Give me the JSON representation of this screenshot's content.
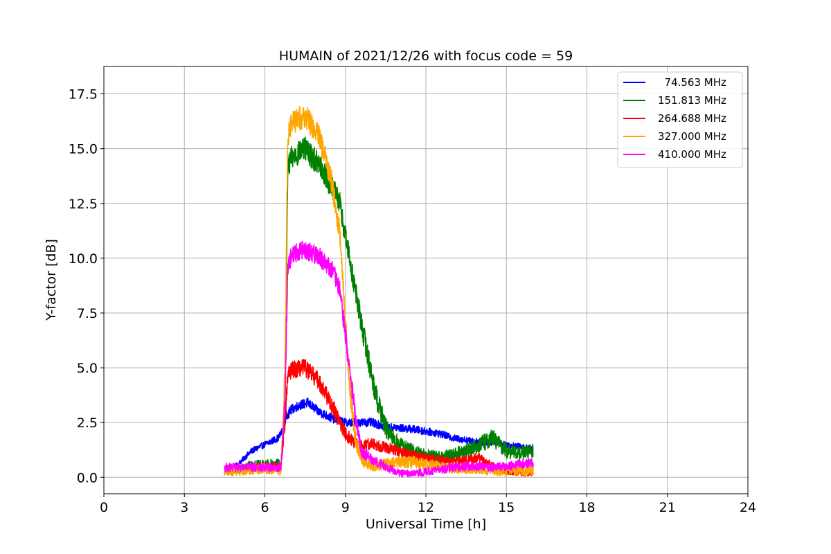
{
  "chart_data": {
    "type": "line",
    "title": "HUMAIN of 2021/12/26 with focus code = 59",
    "xlabel": "Universal Time [h]",
    "ylabel": "Y-factor [dB]",
    "xlim": [
      0,
      24
    ],
    "ylim": [
      -0.75,
      18.75
    ],
    "xticks": [
      0,
      3,
      6,
      9,
      12,
      15,
      18,
      21,
      24
    ],
    "xtick_labels": [
      "0",
      "3",
      "6",
      "9",
      "12",
      "15",
      "18",
      "21",
      "24"
    ],
    "yticks": [
      0,
      2.5,
      5,
      7.5,
      10,
      12.5,
      15,
      17.5
    ],
    "ytick_labels": [
      "0.0",
      "2.5",
      "5.0",
      "7.5",
      "10.0",
      "12.5",
      "15.0",
      "17.5"
    ],
    "grid": true,
    "legend_position": "top-right",
    "series": [
      {
        "name": "  74.563 MHz",
        "color": "#0000ff",
        "points": [
          [
            4.5,
            0.2
          ],
          [
            5.0,
            0.6
          ],
          [
            5.5,
            1.2
          ],
          [
            6.0,
            1.5
          ],
          [
            6.5,
            1.8
          ],
          [
            6.7,
            2.2
          ],
          [
            6.8,
            2.8
          ],
          [
            7.0,
            3.1
          ],
          [
            7.3,
            3.3
          ],
          [
            7.6,
            3.4
          ],
          [
            8.0,
            3.0
          ],
          [
            8.5,
            2.7
          ],
          [
            9.0,
            2.5
          ],
          [
            9.5,
            2.5
          ],
          [
            10.0,
            2.5
          ],
          [
            10.5,
            2.3
          ],
          [
            11.0,
            2.25
          ],
          [
            11.5,
            2.2
          ],
          [
            12.0,
            2.1
          ],
          [
            12.5,
            2.0
          ],
          [
            13.0,
            1.8
          ],
          [
            13.5,
            1.7
          ],
          [
            14.0,
            1.6
          ],
          [
            14.5,
            1.6
          ],
          [
            15.0,
            1.5
          ],
          [
            15.5,
            1.4
          ],
          [
            16.0,
            1.3
          ]
        ],
        "noise": 0.22
      },
      {
        "name": "151.813 MHz",
        "color": "#008000",
        "points": [
          [
            4.5,
            0.3
          ],
          [
            5.0,
            0.4
          ],
          [
            5.5,
            0.5
          ],
          [
            6.0,
            0.55
          ],
          [
            6.6,
            0.6
          ],
          [
            6.75,
            3.0
          ],
          [
            6.85,
            14.0
          ],
          [
            7.0,
            14.6
          ],
          [
            7.5,
            15.0
          ],
          [
            8.0,
            14.3
          ],
          [
            8.5,
            13.2
          ],
          [
            8.8,
            12.5
          ],
          [
            9.0,
            11.0
          ],
          [
            9.3,
            9.0
          ],
          [
            9.6,
            7.0
          ],
          [
            10.0,
            4.5
          ],
          [
            10.3,
            3.0
          ],
          [
            10.6,
            2.0
          ],
          [
            11.0,
            1.5
          ],
          [
            11.5,
            1.2
          ],
          [
            12.0,
            1.0
          ],
          [
            12.5,
            0.9
          ],
          [
            13.0,
            1.0
          ],
          [
            13.5,
            1.2
          ],
          [
            14.0,
            1.5
          ],
          [
            14.5,
            1.8
          ],
          [
            15.0,
            1.2
          ],
          [
            15.5,
            1.1
          ],
          [
            16.0,
            1.2
          ]
        ],
        "noise": 0.55
      },
      {
        "name": "264.688 MHz",
        "color": "#ff0000",
        "points": [
          [
            4.5,
            0.4
          ],
          [
            5.0,
            0.4
          ],
          [
            5.5,
            0.45
          ],
          [
            6.0,
            0.5
          ],
          [
            6.6,
            0.5
          ],
          [
            6.75,
            2.5
          ],
          [
            6.85,
            4.6
          ],
          [
            7.0,
            4.9
          ],
          [
            7.5,
            5.0
          ],
          [
            8.0,
            4.4
          ],
          [
            8.5,
            3.3
          ],
          [
            8.8,
            2.5
          ],
          [
            9.0,
            2.0
          ],
          [
            9.3,
            1.6
          ],
          [
            9.6,
            1.4
          ],
          [
            10.0,
            1.55
          ],
          [
            10.5,
            1.35
          ],
          [
            11.0,
            1.2
          ],
          [
            11.5,
            1.0
          ],
          [
            12.0,
            0.9
          ],
          [
            12.5,
            0.8
          ],
          [
            13.0,
            0.7
          ],
          [
            13.5,
            0.8
          ],
          [
            14.0,
            0.9
          ],
          [
            14.5,
            0.5
          ],
          [
            15.0,
            0.3
          ],
          [
            15.5,
            0.2
          ],
          [
            16.0,
            0.2
          ]
        ],
        "noise": 0.4
      },
      {
        "name": "327.000 MHz",
        "color": "#ffa500",
        "points": [
          [
            4.5,
            0.3
          ],
          [
            5.0,
            0.3
          ],
          [
            5.5,
            0.35
          ],
          [
            6.0,
            0.4
          ],
          [
            6.6,
            0.3
          ],
          [
            6.75,
            5.0
          ],
          [
            6.85,
            15.5
          ],
          [
            7.0,
            16.2
          ],
          [
            7.5,
            16.5
          ],
          [
            8.0,
            15.6
          ],
          [
            8.5,
            13.5
          ],
          [
            8.8,
            11.0
          ],
          [
            9.0,
            7.0
          ],
          [
            9.2,
            3.5
          ],
          [
            9.4,
            1.5
          ],
          [
            9.7,
            0.7
          ],
          [
            10.0,
            0.5
          ],
          [
            10.5,
            0.6
          ],
          [
            11.0,
            0.7
          ],
          [
            11.5,
            0.7
          ],
          [
            12.0,
            0.6
          ],
          [
            12.5,
            0.5
          ],
          [
            13.0,
            0.4
          ],
          [
            13.5,
            0.4
          ],
          [
            14.0,
            0.4
          ],
          [
            14.5,
            0.3
          ],
          [
            15.0,
            0.3
          ],
          [
            15.5,
            0.3
          ],
          [
            16.0,
            0.3
          ]
        ],
        "noise": 0.55
      },
      {
        "name": "410.000 MHz",
        "color": "#ff00ff",
        "points": [
          [
            4.5,
            0.45
          ],
          [
            5.0,
            0.45
          ],
          [
            5.5,
            0.45
          ],
          [
            6.0,
            0.45
          ],
          [
            6.6,
            0.45
          ],
          [
            6.75,
            3.5
          ],
          [
            6.85,
            9.5
          ],
          [
            7.0,
            10.2
          ],
          [
            7.5,
            10.4
          ],
          [
            8.0,
            10.1
          ],
          [
            8.5,
            9.5
          ],
          [
            8.8,
            8.5
          ],
          [
            9.0,
            6.5
          ],
          [
            9.2,
            4.5
          ],
          [
            9.4,
            2.5
          ],
          [
            9.6,
            1.2
          ],
          [
            10.0,
            0.8
          ],
          [
            10.5,
            0.5
          ],
          [
            11.0,
            0.2
          ],
          [
            11.5,
            0.15
          ],
          [
            12.0,
            0.25
          ],
          [
            12.5,
            0.35
          ],
          [
            13.0,
            0.45
          ],
          [
            13.5,
            0.5
          ],
          [
            14.0,
            0.5
          ],
          [
            14.5,
            0.45
          ],
          [
            15.0,
            0.5
          ],
          [
            15.5,
            0.6
          ],
          [
            16.0,
            0.65
          ]
        ],
        "noise": 0.45
      }
    ]
  }
}
